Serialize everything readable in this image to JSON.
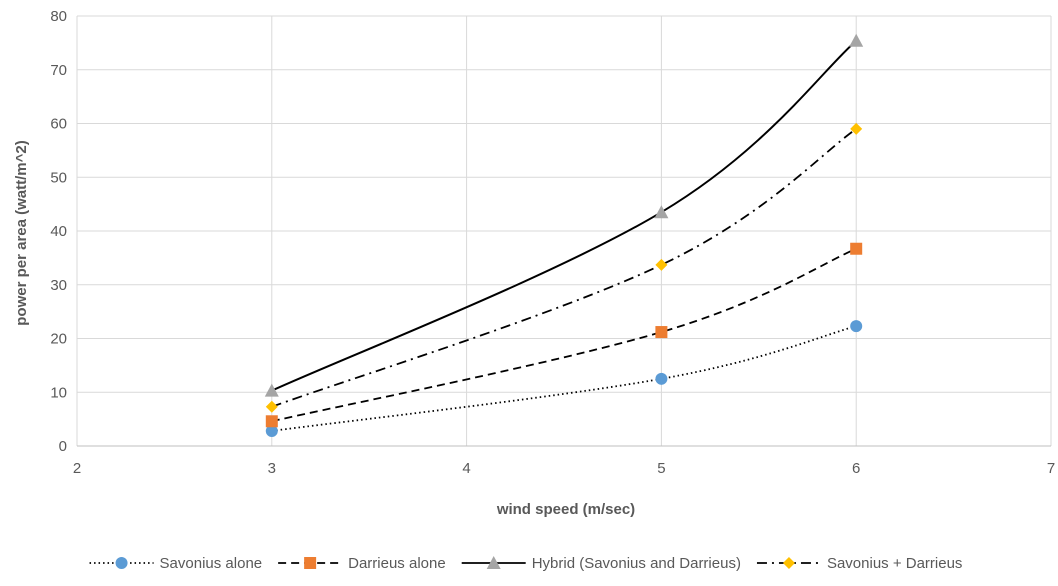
{
  "chart_data": {
    "type": "scatter",
    "title": "",
    "xlabel": "wind speed (m/sec)",
    "ylabel": "power per area (watt/m^2)",
    "xlim": [
      2,
      7
    ],
    "ylim": [
      0,
      80
    ],
    "xticks": [
      2,
      3,
      4,
      5,
      6,
      7
    ],
    "yticks": [
      0,
      10,
      20,
      30,
      40,
      50,
      60,
      70,
      80
    ],
    "grid": true,
    "smooth_lines": true,
    "legend_position": "bottom",
    "series": [
      {
        "name": "Savonius alone",
        "x": [
          3,
          5,
          6
        ],
        "y": [
          2.8,
          12.5,
          22.3
        ],
        "color": "#5b9bd5",
        "marker": "circle",
        "line_style": "dotted"
      },
      {
        "name": "Darrieus alone",
        "x": [
          3,
          5,
          6
        ],
        "y": [
          4.6,
          21.2,
          36.7
        ],
        "color": "#ed7d31",
        "marker": "square",
        "line_style": "dashed"
      },
      {
        "name": "Hybrid (Savonius and Darrieus)",
        "x": [
          3,
          5,
          6
        ],
        "y": [
          10.3,
          43.5,
          75.4
        ],
        "color": "#a5a5a5",
        "marker": "triangle",
        "line_style": "solid"
      },
      {
        "name": "Savonius + Darrieus",
        "x": [
          3,
          5,
          6
        ],
        "y": [
          7.3,
          33.7,
          59.0
        ],
        "color": "#ffc000",
        "marker": "diamond",
        "line_style": "dash-dot"
      }
    ]
  }
}
